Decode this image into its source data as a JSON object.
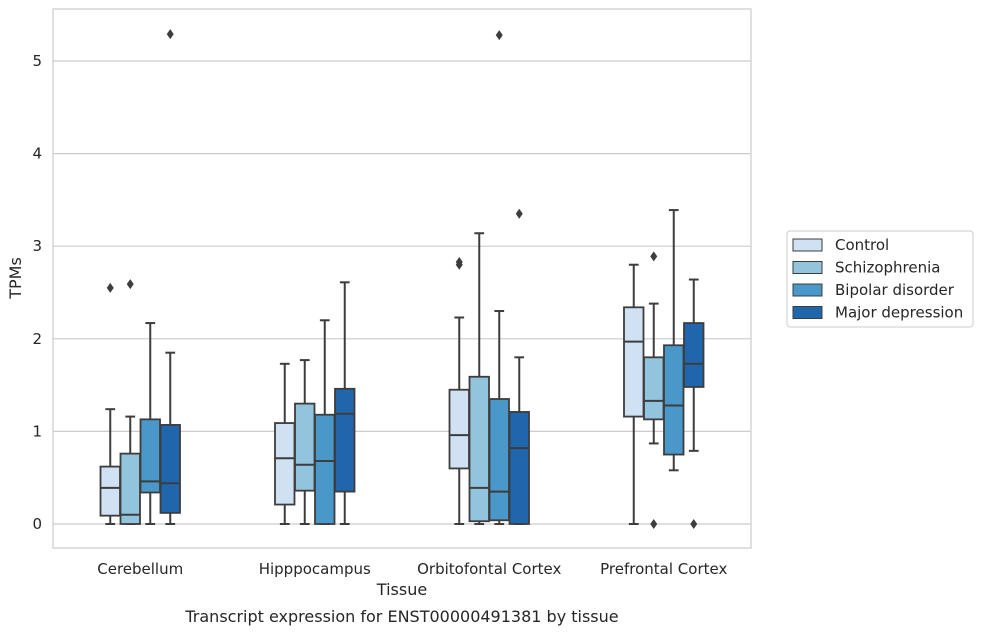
{
  "chart_data": {
    "type": "box",
    "title": "",
    "caption": "Transcript expression for ENST00000491381 by tissue",
    "xlabel": "Tissue",
    "ylabel": "TPMs",
    "ylim": [
      -0.26,
      5.55
    ],
    "yticks": [
      0,
      1,
      2,
      3,
      4,
      5
    ],
    "grid": "horizontal",
    "legend_position": "right",
    "categories": [
      "Cerebellum",
      "Hipppocampus",
      "Orbitofontal Cortex",
      "Prefrontal Cortex"
    ],
    "series": [
      {
        "name": "Control",
        "color": "#cfe1f2",
        "boxes": [
          {
            "whislo": 0.0,
            "q1": 0.09,
            "med": 0.39,
            "q3": 0.62,
            "whishi": 1.24,
            "fliers": [
              2.55
            ]
          },
          {
            "whislo": 0.0,
            "q1": 0.21,
            "med": 0.71,
            "q3": 1.09,
            "whishi": 1.73,
            "fliers": []
          },
          {
            "whislo": 0.0,
            "q1": 0.6,
            "med": 0.96,
            "q3": 1.45,
            "whishi": 2.23,
            "fliers": [
              2.8,
              2.83
            ]
          },
          {
            "whislo": 0.0,
            "q1": 1.16,
            "med": 1.97,
            "q3": 2.34,
            "whishi": 2.8,
            "fliers": []
          }
        ]
      },
      {
        "name": "Schizophrenia",
        "color": "#93c4de",
        "boxes": [
          {
            "whislo": 0.0,
            "q1": 0.0,
            "med": 0.1,
            "q3": 0.76,
            "whishi": 1.16,
            "fliers": [
              2.59
            ]
          },
          {
            "whislo": 0.0,
            "q1": 0.36,
            "med": 0.64,
            "q3": 1.3,
            "whishi": 1.77,
            "fliers": []
          },
          {
            "whislo": 0.0,
            "q1": 0.03,
            "med": 0.39,
            "q3": 1.59,
            "whishi": 3.14,
            "fliers": []
          },
          {
            "whislo": 0.87,
            "q1": 1.13,
            "med": 1.33,
            "q3": 1.8,
            "whishi": 2.38,
            "fliers": [
              2.89,
              0.0
            ]
          }
        ]
      },
      {
        "name": "Bipolar disorder",
        "color": "#4a98c9",
        "boxes": [
          {
            "whislo": 0.0,
            "q1": 0.34,
            "med": 0.46,
            "q3": 1.13,
            "whishi": 2.17,
            "fliers": []
          },
          {
            "whislo": 0.0,
            "q1": 0.0,
            "med": 0.68,
            "q3": 1.18,
            "whishi": 2.2,
            "fliers": []
          },
          {
            "whislo": 0.0,
            "q1": 0.04,
            "med": 0.35,
            "q3": 1.35,
            "whishi": 2.3,
            "fliers": [
              5.28
            ]
          },
          {
            "whislo": 0.58,
            "q1": 0.75,
            "med": 1.28,
            "q3": 1.93,
            "whishi": 3.39,
            "fliers": []
          }
        ]
      },
      {
        "name": "Major depression",
        "color": "#2066ac",
        "boxes": [
          {
            "whislo": 0.0,
            "q1": 0.12,
            "med": 0.44,
            "q3": 1.07,
            "whishi": 1.85,
            "fliers": [
              5.29
            ]
          },
          {
            "whislo": 0.0,
            "q1": 0.35,
            "med": 1.19,
            "q3": 1.46,
            "whishi": 2.61,
            "fliers": []
          },
          {
            "whislo": 0.0,
            "q1": 0.0,
            "med": 0.82,
            "q3": 1.21,
            "whishi": 1.8,
            "fliers": [
              3.35
            ]
          },
          {
            "whislo": 0.79,
            "q1": 1.48,
            "med": 1.73,
            "q3": 2.17,
            "whishi": 2.64,
            "fliers": [
              0.0
            ]
          }
        ]
      }
    ]
  }
}
